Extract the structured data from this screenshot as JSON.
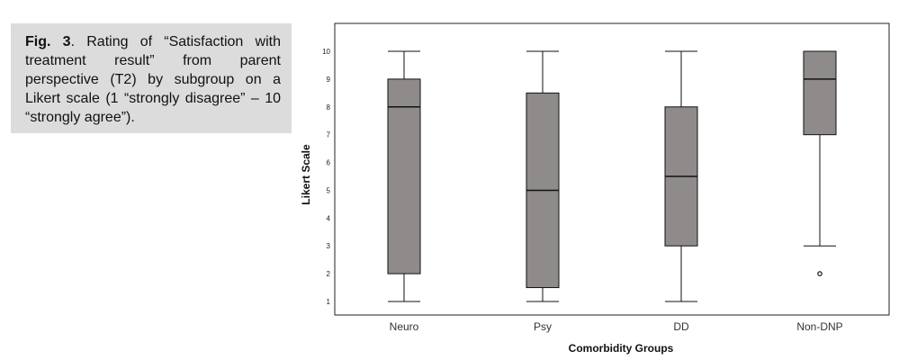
{
  "caption": {
    "fig_label": "Fig. 3",
    "text": ". Rating of “Satisfaction with treatment result” from parent perspective (T2) by subgroup on a Likert scale (1 “strongly disagree” – 10 “strongly agree”)."
  },
  "chart_data": {
    "type": "boxplot",
    "xlabel": "Comorbidity Groups",
    "ylabel": "Likert Scale",
    "ylim": [
      1,
      10
    ],
    "yticks": [
      "1",
      "2",
      "3",
      "4",
      "5",
      "6",
      "7",
      "8",
      "9",
      "10"
    ],
    "categories": [
      "Neuro",
      "Psy",
      "DD",
      "Non-DNP"
    ],
    "boxes": [
      {
        "category": "Neuro",
        "min": 1,
        "q1": 2,
        "median": 8,
        "q3": 9,
        "max": 10,
        "outliers": []
      },
      {
        "category": "Psy",
        "min": 1,
        "q1": 1.5,
        "median": 5,
        "q3": 8.5,
        "max": 10,
        "outliers": []
      },
      {
        "category": "DD",
        "min": 1,
        "q1": 3,
        "median": 5.5,
        "q3": 8,
        "max": 10,
        "outliers": []
      },
      {
        "category": "Non-DNP",
        "min": 3,
        "q1": 7,
        "median": 9,
        "q3": 10,
        "max": 10,
        "outliers": [
          2
        ]
      }
    ],
    "box_color": "#8f8b8b",
    "line_color": "#111111",
    "grid": false
  }
}
